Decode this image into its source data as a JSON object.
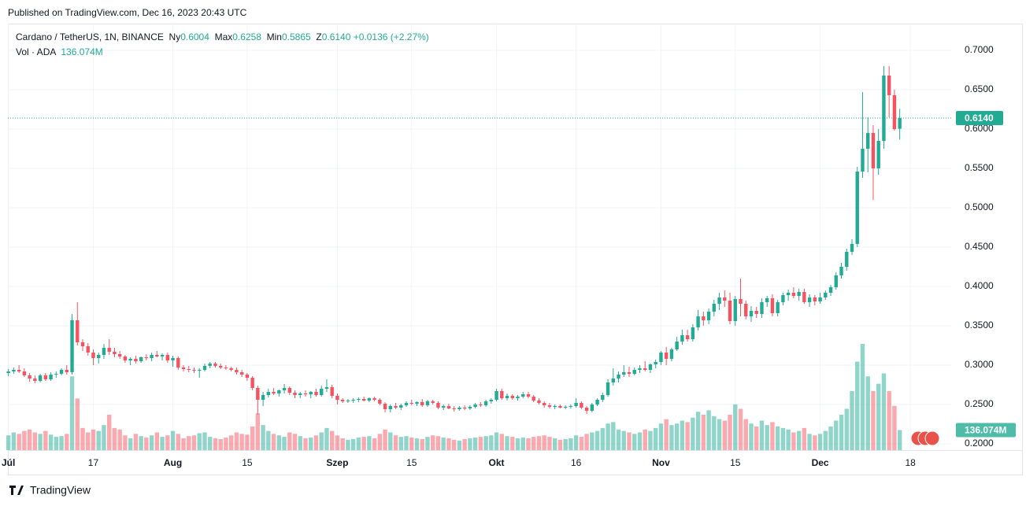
{
  "chart_data": {
    "type": "candlestick",
    "published": "Published on TradingView.com, Dec 16, 2023 20:43 UTC",
    "brand": "TradingView",
    "symbol": "Cardano / TetherUS, 1N, BINANCE",
    "ohlc_names": [
      "Ny",
      "Max",
      "Min",
      "Z"
    ],
    "close_label": "0.6140",
    "change": "+0.0136 (+2.27%)",
    "volume_name": "Vol · ADA",
    "volume_label": "136.074M",
    "up_color": "#22ab94",
    "down_color": "#f7525f",
    "grid": true,
    "ylim": [
      0.192,
      0.734
    ],
    "yticks": [
      {
        "value": 0.2,
        "label": "0.2000"
      },
      {
        "value": 0.25,
        "label": "0.2500"
      },
      {
        "value": 0.3,
        "label": "0.3000"
      },
      {
        "value": 0.35,
        "label": "0.3500"
      },
      {
        "value": 0.4,
        "label": "0.4000"
      },
      {
        "value": 0.45,
        "label": "0.4500"
      },
      {
        "value": 0.5,
        "label": "0.5000"
      },
      {
        "value": 0.55,
        "label": "0.5500"
      },
      {
        "value": 0.6,
        "label": "0.6000"
      },
      {
        "value": 0.65,
        "label": "0.6500"
      },
      {
        "value": 0.7,
        "label": "0.7000"
      }
    ],
    "xlim": [
      -0.1,
      177.7
    ],
    "xticks": [
      {
        "value": 0,
        "label": "Júl"
      },
      {
        "value": 16,
        "label": "17"
      },
      {
        "value": 31,
        "label": "Aug"
      },
      {
        "value": 45,
        "label": "15"
      },
      {
        "value": 62,
        "label": "Szep"
      },
      {
        "value": 76,
        "label": "15"
      },
      {
        "value": 92,
        "label": "Okt"
      },
      {
        "value": 107,
        "label": "16"
      },
      {
        "value": 123,
        "label": "Nov"
      },
      {
        "value": 137,
        "label": "15"
      },
      {
        "value": 153,
        "label": "Dec"
      },
      {
        "value": 170,
        "label": "18"
      }
    ],
    "ohlc": [
      [
        0.29,
        0.295,
        0.286,
        0.292
      ],
      [
        0.292,
        0.297,
        0.289,
        0.294
      ],
      [
        0.294,
        0.3,
        0.29,
        0.292
      ],
      [
        0.292,
        0.296,
        0.285,
        0.287
      ],
      [
        0.287,
        0.29,
        0.279,
        0.283
      ],
      [
        0.283,
        0.287,
        0.277,
        0.28
      ],
      [
        0.28,
        0.289,
        0.278,
        0.287
      ],
      [
        0.287,
        0.29,
        0.28,
        0.282
      ],
      [
        0.282,
        0.291,
        0.28,
        0.288
      ],
      [
        0.288,
        0.292,
        0.284,
        0.289
      ],
      [
        0.289,
        0.296,
        0.287,
        0.294
      ],
      [
        0.294,
        0.3,
        0.288,
        0.291
      ],
      [
        0.291,
        0.365,
        0.288,
        0.357
      ],
      [
        0.357,
        0.38,
        0.325,
        0.329
      ],
      [
        0.329,
        0.333,
        0.318,
        0.324
      ],
      [
        0.324,
        0.328,
        0.312,
        0.316
      ],
      [
        0.316,
        0.32,
        0.3,
        0.309
      ],
      [
        0.309,
        0.316,
        0.302,
        0.313
      ],
      [
        0.313,
        0.327,
        0.308,
        0.322
      ],
      [
        0.322,
        0.333,
        0.313,
        0.317
      ],
      [
        0.317,
        0.322,
        0.31,
        0.314
      ],
      [
        0.314,
        0.318,
        0.308,
        0.311
      ],
      [
        0.311,
        0.313,
        0.303,
        0.306
      ],
      [
        0.306,
        0.31,
        0.3,
        0.308
      ],
      [
        0.308,
        0.312,
        0.302,
        0.305
      ],
      [
        0.305,
        0.311,
        0.303,
        0.31
      ],
      [
        0.31,
        0.314,
        0.306,
        0.309
      ],
      [
        0.309,
        0.316,
        0.305,
        0.313
      ],
      [
        0.313,
        0.318,
        0.31,
        0.311
      ],
      [
        0.311,
        0.315,
        0.306,
        0.313
      ],
      [
        0.313,
        0.316,
        0.303,
        0.306
      ],
      [
        0.306,
        0.312,
        0.298,
        0.309
      ],
      [
        0.309,
        0.311,
        0.294,
        0.297
      ],
      [
        0.297,
        0.3,
        0.292,
        0.295
      ],
      [
        0.295,
        0.299,
        0.291,
        0.294
      ],
      [
        0.294,
        0.297,
        0.29,
        0.293
      ],
      [
        0.293,
        0.296,
        0.284,
        0.294
      ],
      [
        0.294,
        0.302,
        0.292,
        0.299
      ],
      [
        0.299,
        0.304,
        0.296,
        0.302
      ],
      [
        0.302,
        0.304,
        0.297,
        0.299
      ],
      [
        0.299,
        0.302,
        0.295,
        0.297
      ],
      [
        0.297,
        0.3,
        0.294,
        0.296
      ],
      [
        0.296,
        0.298,
        0.292,
        0.294
      ],
      [
        0.294,
        0.297,
        0.288,
        0.291
      ],
      [
        0.291,
        0.294,
        0.285,
        0.288
      ],
      [
        0.288,
        0.29,
        0.28,
        0.284
      ],
      [
        0.284,
        0.286,
        0.268,
        0.271
      ],
      [
        0.271,
        0.274,
        0.237,
        0.256
      ],
      [
        0.256,
        0.266,
        0.248,
        0.262
      ],
      [
        0.262,
        0.27,
        0.259,
        0.266
      ],
      [
        0.266,
        0.271,
        0.262,
        0.264
      ],
      [
        0.264,
        0.269,
        0.26,
        0.268
      ],
      [
        0.268,
        0.276,
        0.264,
        0.271
      ],
      [
        0.271,
        0.273,
        0.262,
        0.265
      ],
      [
        0.265,
        0.268,
        0.258,
        0.262
      ],
      [
        0.262,
        0.266,
        0.258,
        0.264
      ],
      [
        0.264,
        0.268,
        0.26,
        0.263
      ],
      [
        0.263,
        0.267,
        0.258,
        0.266
      ],
      [
        0.266,
        0.27,
        0.26,
        0.262
      ],
      [
        0.262,
        0.274,
        0.26,
        0.27
      ],
      [
        0.27,
        0.282,
        0.266,
        0.272
      ],
      [
        0.272,
        0.275,
        0.258,
        0.261
      ],
      [
        0.261,
        0.264,
        0.25,
        0.256
      ],
      [
        0.256,
        0.258,
        0.252,
        0.254
      ],
      [
        0.254,
        0.257,
        0.252,
        0.255
      ],
      [
        0.255,
        0.258,
        0.252,
        0.256
      ],
      [
        0.256,
        0.259,
        0.253,
        0.257
      ],
      [
        0.257,
        0.26,
        0.254,
        0.255
      ],
      [
        0.255,
        0.259,
        0.253,
        0.258
      ],
      [
        0.258,
        0.26,
        0.254,
        0.256
      ],
      [
        0.256,
        0.258,
        0.249,
        0.251
      ],
      [
        0.251,
        0.253,
        0.24,
        0.244
      ],
      [
        0.244,
        0.25,
        0.24,
        0.248
      ],
      [
        0.248,
        0.252,
        0.244,
        0.246
      ],
      [
        0.246,
        0.251,
        0.243,
        0.249
      ],
      [
        0.249,
        0.254,
        0.247,
        0.252
      ],
      [
        0.252,
        0.256,
        0.249,
        0.251
      ],
      [
        0.251,
        0.254,
        0.248,
        0.253
      ],
      [
        0.253,
        0.257,
        0.247,
        0.249
      ],
      [
        0.249,
        0.256,
        0.247,
        0.254
      ],
      [
        0.254,
        0.256,
        0.25,
        0.252
      ],
      [
        0.252,
        0.254,
        0.244,
        0.246
      ],
      [
        0.246,
        0.25,
        0.243,
        0.248
      ],
      [
        0.248,
        0.251,
        0.244,
        0.245
      ],
      [
        0.245,
        0.248,
        0.241,
        0.244
      ],
      [
        0.244,
        0.248,
        0.242,
        0.246
      ],
      [
        0.246,
        0.249,
        0.243,
        0.245
      ],
      [
        0.245,
        0.249,
        0.243,
        0.247
      ],
      [
        0.247,
        0.252,
        0.245,
        0.25
      ],
      [
        0.25,
        0.253,
        0.247,
        0.249
      ],
      [
        0.249,
        0.256,
        0.247,
        0.254
      ],
      [
        0.254,
        0.258,
        0.251,
        0.256
      ],
      [
        0.256,
        0.27,
        0.254,
        0.267
      ],
      [
        0.267,
        0.27,
        0.256,
        0.258
      ],
      [
        0.258,
        0.264,
        0.255,
        0.261
      ],
      [
        0.261,
        0.263,
        0.256,
        0.258
      ],
      [
        0.258,
        0.262,
        0.255,
        0.26
      ],
      [
        0.26,
        0.266,
        0.258,
        0.263
      ],
      [
        0.263,
        0.266,
        0.258,
        0.26
      ],
      [
        0.26,
        0.262,
        0.253,
        0.255
      ],
      [
        0.255,
        0.258,
        0.25,
        0.252
      ],
      [
        0.252,
        0.254,
        0.246,
        0.249
      ],
      [
        0.249,
        0.252,
        0.245,
        0.247
      ],
      [
        0.247,
        0.25,
        0.244,
        0.248
      ],
      [
        0.248,
        0.25,
        0.245,
        0.246
      ],
      [
        0.246,
        0.249,
        0.244,
        0.247
      ],
      [
        0.247,
        0.25,
        0.245,
        0.248
      ],
      [
        0.248,
        0.258,
        0.246,
        0.252
      ],
      [
        0.252,
        0.254,
        0.244,
        0.246
      ],
      [
        0.246,
        0.248,
        0.238,
        0.242
      ],
      [
        0.242,
        0.252,
        0.24,
        0.25
      ],
      [
        0.25,
        0.258,
        0.248,
        0.256
      ],
      [
        0.256,
        0.265,
        0.253,
        0.262
      ],
      [
        0.262,
        0.282,
        0.26,
        0.278
      ],
      [
        0.278,
        0.296,
        0.274,
        0.283
      ],
      [
        0.283,
        0.292,
        0.278,
        0.288
      ],
      [
        0.288,
        0.3,
        0.285,
        0.291
      ],
      [
        0.291,
        0.298,
        0.285,
        0.289
      ],
      [
        0.289,
        0.297,
        0.287,
        0.294
      ],
      [
        0.294,
        0.3,
        0.29,
        0.296
      ],
      [
        0.296,
        0.305,
        0.292,
        0.294
      ],
      [
        0.294,
        0.302,
        0.29,
        0.301
      ],
      [
        0.301,
        0.307,
        0.296,
        0.304
      ],
      [
        0.304,
        0.318,
        0.3,
        0.316
      ],
      [
        0.316,
        0.323,
        0.3,
        0.308
      ],
      [
        0.308,
        0.322,
        0.305,
        0.32
      ],
      [
        0.32,
        0.336,
        0.318,
        0.33
      ],
      [
        0.33,
        0.345,
        0.326,
        0.338
      ],
      [
        0.338,
        0.345,
        0.33,
        0.333
      ],
      [
        0.333,
        0.352,
        0.33,
        0.348
      ],
      [
        0.348,
        0.37,
        0.344,
        0.362
      ],
      [
        0.362,
        0.368,
        0.35,
        0.357
      ],
      [
        0.357,
        0.372,
        0.352,
        0.368
      ],
      [
        0.368,
        0.383,
        0.362,
        0.378
      ],
      [
        0.378,
        0.392,
        0.37,
        0.386
      ],
      [
        0.386,
        0.395,
        0.374,
        0.382
      ],
      [
        0.382,
        0.392,
        0.352,
        0.356
      ],
      [
        0.356,
        0.388,
        0.35,
        0.384
      ],
      [
        0.384,
        0.41,
        0.362,
        0.378
      ],
      [
        0.378,
        0.382,
        0.358,
        0.362
      ],
      [
        0.362,
        0.375,
        0.355,
        0.369
      ],
      [
        0.369,
        0.374,
        0.36,
        0.365
      ],
      [
        0.365,
        0.385,
        0.36,
        0.38
      ],
      [
        0.38,
        0.388,
        0.374,
        0.385
      ],
      [
        0.385,
        0.39,
        0.362,
        0.366
      ],
      [
        0.366,
        0.383,
        0.362,
        0.38
      ],
      [
        0.38,
        0.392,
        0.376,
        0.389
      ],
      [
        0.389,
        0.396,
        0.382,
        0.392
      ],
      [
        0.392,
        0.399,
        0.385,
        0.388
      ],
      [
        0.388,
        0.397,
        0.382,
        0.393
      ],
      [
        0.393,
        0.397,
        0.378,
        0.38
      ],
      [
        0.38,
        0.39,
        0.374,
        0.386
      ],
      [
        0.386,
        0.389,
        0.376,
        0.381
      ],
      [
        0.381,
        0.392,
        0.378,
        0.386
      ],
      [
        0.386,
        0.395,
        0.383,
        0.392
      ],
      [
        0.392,
        0.402,
        0.388,
        0.399
      ],
      [
        0.399,
        0.418,
        0.396,
        0.414
      ],
      [
        0.414,
        0.43,
        0.41,
        0.425
      ],
      [
        0.425,
        0.448,
        0.42,
        0.444
      ],
      [
        0.444,
        0.46,
        0.44,
        0.454
      ],
      [
        0.454,
        0.552,
        0.45,
        0.546
      ],
      [
        0.546,
        0.647,
        0.538,
        0.575
      ],
      [
        0.575,
        0.615,
        0.545,
        0.595
      ],
      [
        0.595,
        0.605,
        0.51,
        0.55
      ],
      [
        0.55,
        0.6,
        0.542,
        0.585
      ],
      [
        0.585,
        0.68,
        0.575,
        0.668
      ],
      [
        0.668,
        0.68,
        0.615,
        0.643
      ],
      [
        0.643,
        0.65,
        0.598,
        0.6
      ],
      [
        0.6004,
        0.6258,
        0.5865,
        0.614
      ]
    ],
    "volume": [
      100,
      120,
      110,
      130,
      140,
      120,
      110,
      130,
      105,
      90,
      95,
      110,
      500,
      350,
      150,
      120,
      140,
      130,
      170,
      240,
      150,
      140,
      100,
      80,
      110,
      95,
      85,
      100,
      120,
      90,
      100,
      130,
      110,
      80,
      95,
      100,
      115,
      120,
      90,
      80,
      75,
      85,
      100,
      120,
      110,
      105,
      160,
      250,
      170,
      130,
      110,
      100,
      90,
      120,
      110,
      95,
      80,
      85,
      100,
      120,
      150,
      130,
      100,
      80,
      70,
      75,
      85,
      90,
      95,
      80,
      110,
      140,
      120,
      100,
      90,
      95,
      85,
      80,
      75,
      90,
      100,
      95,
      85,
      80,
      70,
      65,
      75,
      80,
      85,
      90,
      95,
      100,
      120,
      110,
      95,
      90,
      80,
      85,
      80,
      90,
      95,
      100,
      90,
      80,
      70,
      75,
      80,
      100,
      90,
      110,
      120,
      130,
      150,
      180,
      190,
      140,
      130,
      120,
      110,
      120,
      140,
      130,
      150,
      180,
      210,
      170,
      180,
      200,
      190,
      220,
      260,
      240,
      270,
      230,
      210,
      200,
      240,
      310,
      280,
      210,
      180,
      160,
      200,
      170,
      190,
      160,
      150,
      140,
      120,
      130,
      150,
      110,
      100,
      110,
      130,
      160,
      200,
      240,
      280,
      400,
      600,
      720,
      500,
      400,
      450,
      520,
      400,
      300,
      136.074
    ]
  }
}
